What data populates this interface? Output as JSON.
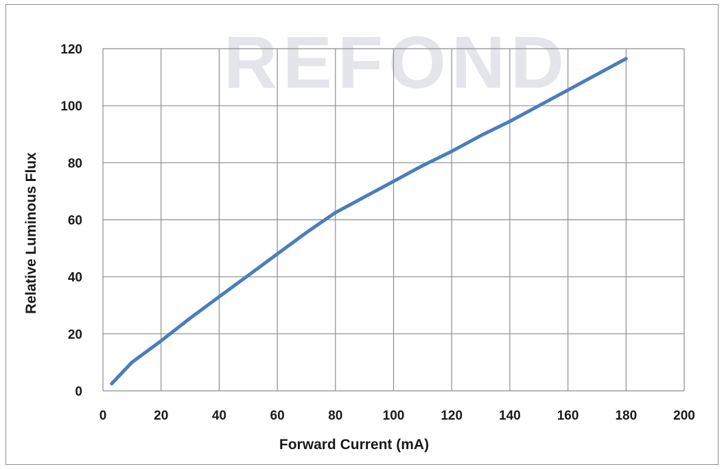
{
  "watermark": "REFOND",
  "chart_data": {
    "type": "line",
    "title": "",
    "xlabel": "Forward Current (mA)",
    "ylabel": "Relative Luminous Flux",
    "xlim": [
      0,
      200
    ],
    "ylim": [
      0,
      120
    ],
    "x_ticks": [
      0,
      20,
      40,
      60,
      80,
      100,
      120,
      140,
      160,
      180,
      200
    ],
    "y_ticks": [
      0,
      20,
      40,
      60,
      80,
      100,
      120
    ],
    "grid": true,
    "legend": "none",
    "series": [
      {
        "color": "#4a7ebb",
        "points": [
          [
            3,
            2.5
          ],
          [
            10,
            10
          ],
          [
            20,
            17.5
          ],
          [
            30,
            25.5
          ],
          [
            40,
            33
          ],
          [
            50,
            40.5
          ],
          [
            60,
            48
          ],
          [
            70,
            55.5
          ],
          [
            80,
            62.5
          ],
          [
            90,
            68
          ],
          [
            100,
            73.5
          ],
          [
            110,
            79
          ],
          [
            120,
            84
          ],
          [
            130,
            89.5
          ],
          [
            140,
            94.5
          ],
          [
            150,
            100
          ],
          [
            160,
            105.5
          ],
          [
            170,
            111
          ],
          [
            180,
            116.5
          ]
        ]
      }
    ]
  }
}
